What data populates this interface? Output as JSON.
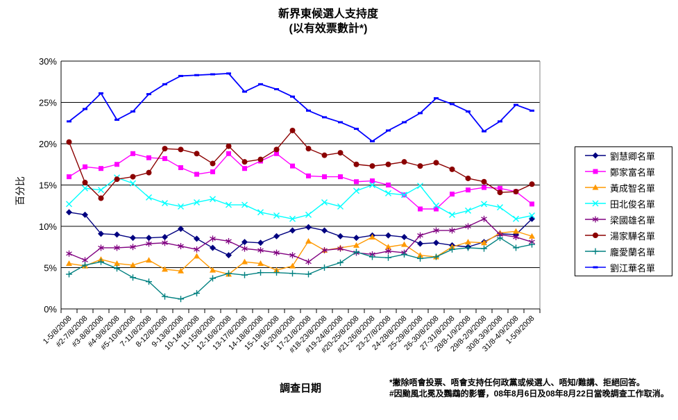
{
  "title": {
    "line1": "新界東候選人支持度",
    "line2": "(以有效票數計*)"
  },
  "y_axis": {
    "title": "百分比",
    "tick_labels": [
      "0%",
      "5%",
      "10%",
      "15%",
      "20%",
      "25%",
      "30%"
    ]
  },
  "x_axis": {
    "title": "調查日期"
  },
  "footnotes": [
    "*撇除唔會投票、唔會支持任何政黨或候選人、唔知/難講、拒絕回答。",
    "#因颱風北冕及鸚鵡的影響，08年8月6日及08年8月22日當晚調查工作取消。"
  ],
  "chart_data": {
    "type": "line",
    "title": "新界東候選人支持度 (以有效票數計*)",
    "xlabel": "調查日期",
    "ylabel": "百分比",
    "ylim": [
      0,
      30
    ],
    "ytick_step": 5,
    "grid": true,
    "legend_position": "right",
    "categories": [
      "1-5/8/2008",
      "#2-7/8/2008",
      "#3-8/8/2008",
      "#4-9/8/2008",
      "#5-10/8/2008",
      "7-11/8/2008",
      "8-12/8/2008",
      "9-13/8/2008",
      "10-14/8/2008",
      "11-15/8/2008",
      "12-16/8/2008",
      "13-17/8/2008",
      "14-18/8/2008",
      "15-19/8/2008",
      "16-20/8/2008",
      "17-21/8/2008",
      "#18-23/8/2008",
      "#19-24/8/2008",
      "#20-25/8/2008",
      "#21-26/8/2008",
      "23-27/8/2008",
      "24-28/8/2008",
      "25-29/8/2008",
      "26-30/8/2008",
      "27-31/8/2008",
      "28/8-1/9/2008",
      "29/8-2/9/2008",
      "30/8-3/9/2008",
      "31/8-4/9/2008",
      "1-5/9/2008"
    ],
    "series": [
      {
        "name": "劉慧卿名單",
        "color": "#000080",
        "marker": "diamond",
        "values": [
          11.7,
          11.4,
          9.1,
          9.0,
          8.6,
          8.6,
          8.7,
          9.7,
          8.5,
          7.4,
          6.5,
          8.1,
          8.0,
          8.8,
          9.5,
          9.9,
          9.5,
          8.8,
          8.6,
          8.9,
          8.9,
          8.7,
          7.9,
          8.0,
          7.7,
          7.5,
          8.1,
          9.1,
          9.0,
          10.9
        ]
      },
      {
        "name": "鄭家富名單",
        "color": "#FF00FF",
        "marker": "square",
        "values": [
          16.0,
          17.2,
          17.0,
          17.5,
          18.8,
          18.3,
          18.2,
          17.1,
          16.3,
          16.6,
          18.8,
          17.0,
          17.9,
          18.8,
          17.3,
          16.1,
          16.0,
          16.0,
          15.4,
          15.5,
          15.0,
          13.8,
          12.1,
          12.1,
          13.9,
          14.4,
          14.7,
          14.6,
          14.2,
          12.7
        ]
      },
      {
        "name": "黃成智名單",
        "color": "#FF9900",
        "marker": "triangle",
        "values": [
          5.5,
          5.2,
          6.0,
          5.5,
          5.3,
          5.9,
          4.8,
          4.6,
          6.4,
          4.7,
          4.2,
          5.7,
          5.5,
          4.7,
          5.2,
          8.2,
          7.1,
          7.4,
          7.7,
          8.7,
          7.5,
          7.8,
          6.5,
          6.3,
          7.5,
          8.1,
          8.0,
          9.2,
          9.4,
          8.8
        ]
      },
      {
        "name": "田北俊名單",
        "color": "#00FFFF",
        "marker": "x",
        "values": [
          12.7,
          14.6,
          14.4,
          15.9,
          15.2,
          13.5,
          12.8,
          12.4,
          12.9,
          13.3,
          12.6,
          12.6,
          11.7,
          11.3,
          10.9,
          11.4,
          12.9,
          12.4,
          14.3,
          15.0,
          14.0,
          13.8,
          14.9,
          12.5,
          11.4,
          11.9,
          12.7,
          12.3,
          10.9,
          11.3
        ]
      },
      {
        "name": "梁國雄名單",
        "color": "#800080",
        "marker": "asterisk",
        "values": [
          6.7,
          5.9,
          7.4,
          7.4,
          7.5,
          7.9,
          8.0,
          7.6,
          7.2,
          8.5,
          8.2,
          7.3,
          7.1,
          6.8,
          6.5,
          5.7,
          7.1,
          7.3,
          6.8,
          6.6,
          7.0,
          6.8,
          8.9,
          9.5,
          9.5,
          10.0,
          10.9,
          9.0,
          8.7,
          8.1
        ]
      },
      {
        "name": "湯家驊名單",
        "color": "#8B0000",
        "marker": "circle",
        "values": [
          20.2,
          15.3,
          13.4,
          15.7,
          16.0,
          16.5,
          19.4,
          19.3,
          18.8,
          17.6,
          19.7,
          17.8,
          18.1,
          19.3,
          21.6,
          19.4,
          18.6,
          18.9,
          17.5,
          17.3,
          17.5,
          17.8,
          17.3,
          17.7,
          16.9,
          15.8,
          15.4,
          14.1,
          14.2,
          15.1
        ]
      },
      {
        "name": "龐愛蘭名單",
        "color": "#008080",
        "marker": "plus",
        "values": [
          4.2,
          5.3,
          5.7,
          4.9,
          3.8,
          3.3,
          1.5,
          1.2,
          1.9,
          3.7,
          4.3,
          4.1,
          4.4,
          4.4,
          4.3,
          4.2,
          5.0,
          5.6,
          6.9,
          6.3,
          6.2,
          6.6,
          6.1,
          6.3,
          7.2,
          7.4,
          7.3,
          8.6,
          7.4,
          7.8
        ]
      },
      {
        "name": "劉江華名單",
        "color": "#0000FF",
        "marker": "dash",
        "values": [
          22.7,
          24.2,
          26.1,
          22.9,
          23.9,
          26.0,
          27.2,
          28.2,
          28.3,
          28.4,
          28.5,
          26.3,
          27.2,
          26.6,
          25.7,
          24.0,
          23.2,
          22.6,
          21.8,
          20.3,
          21.6,
          22.6,
          23.7,
          25.5,
          24.8,
          23.9,
          21.5,
          22.7,
          24.7,
          24.0
        ]
      }
    ]
  }
}
